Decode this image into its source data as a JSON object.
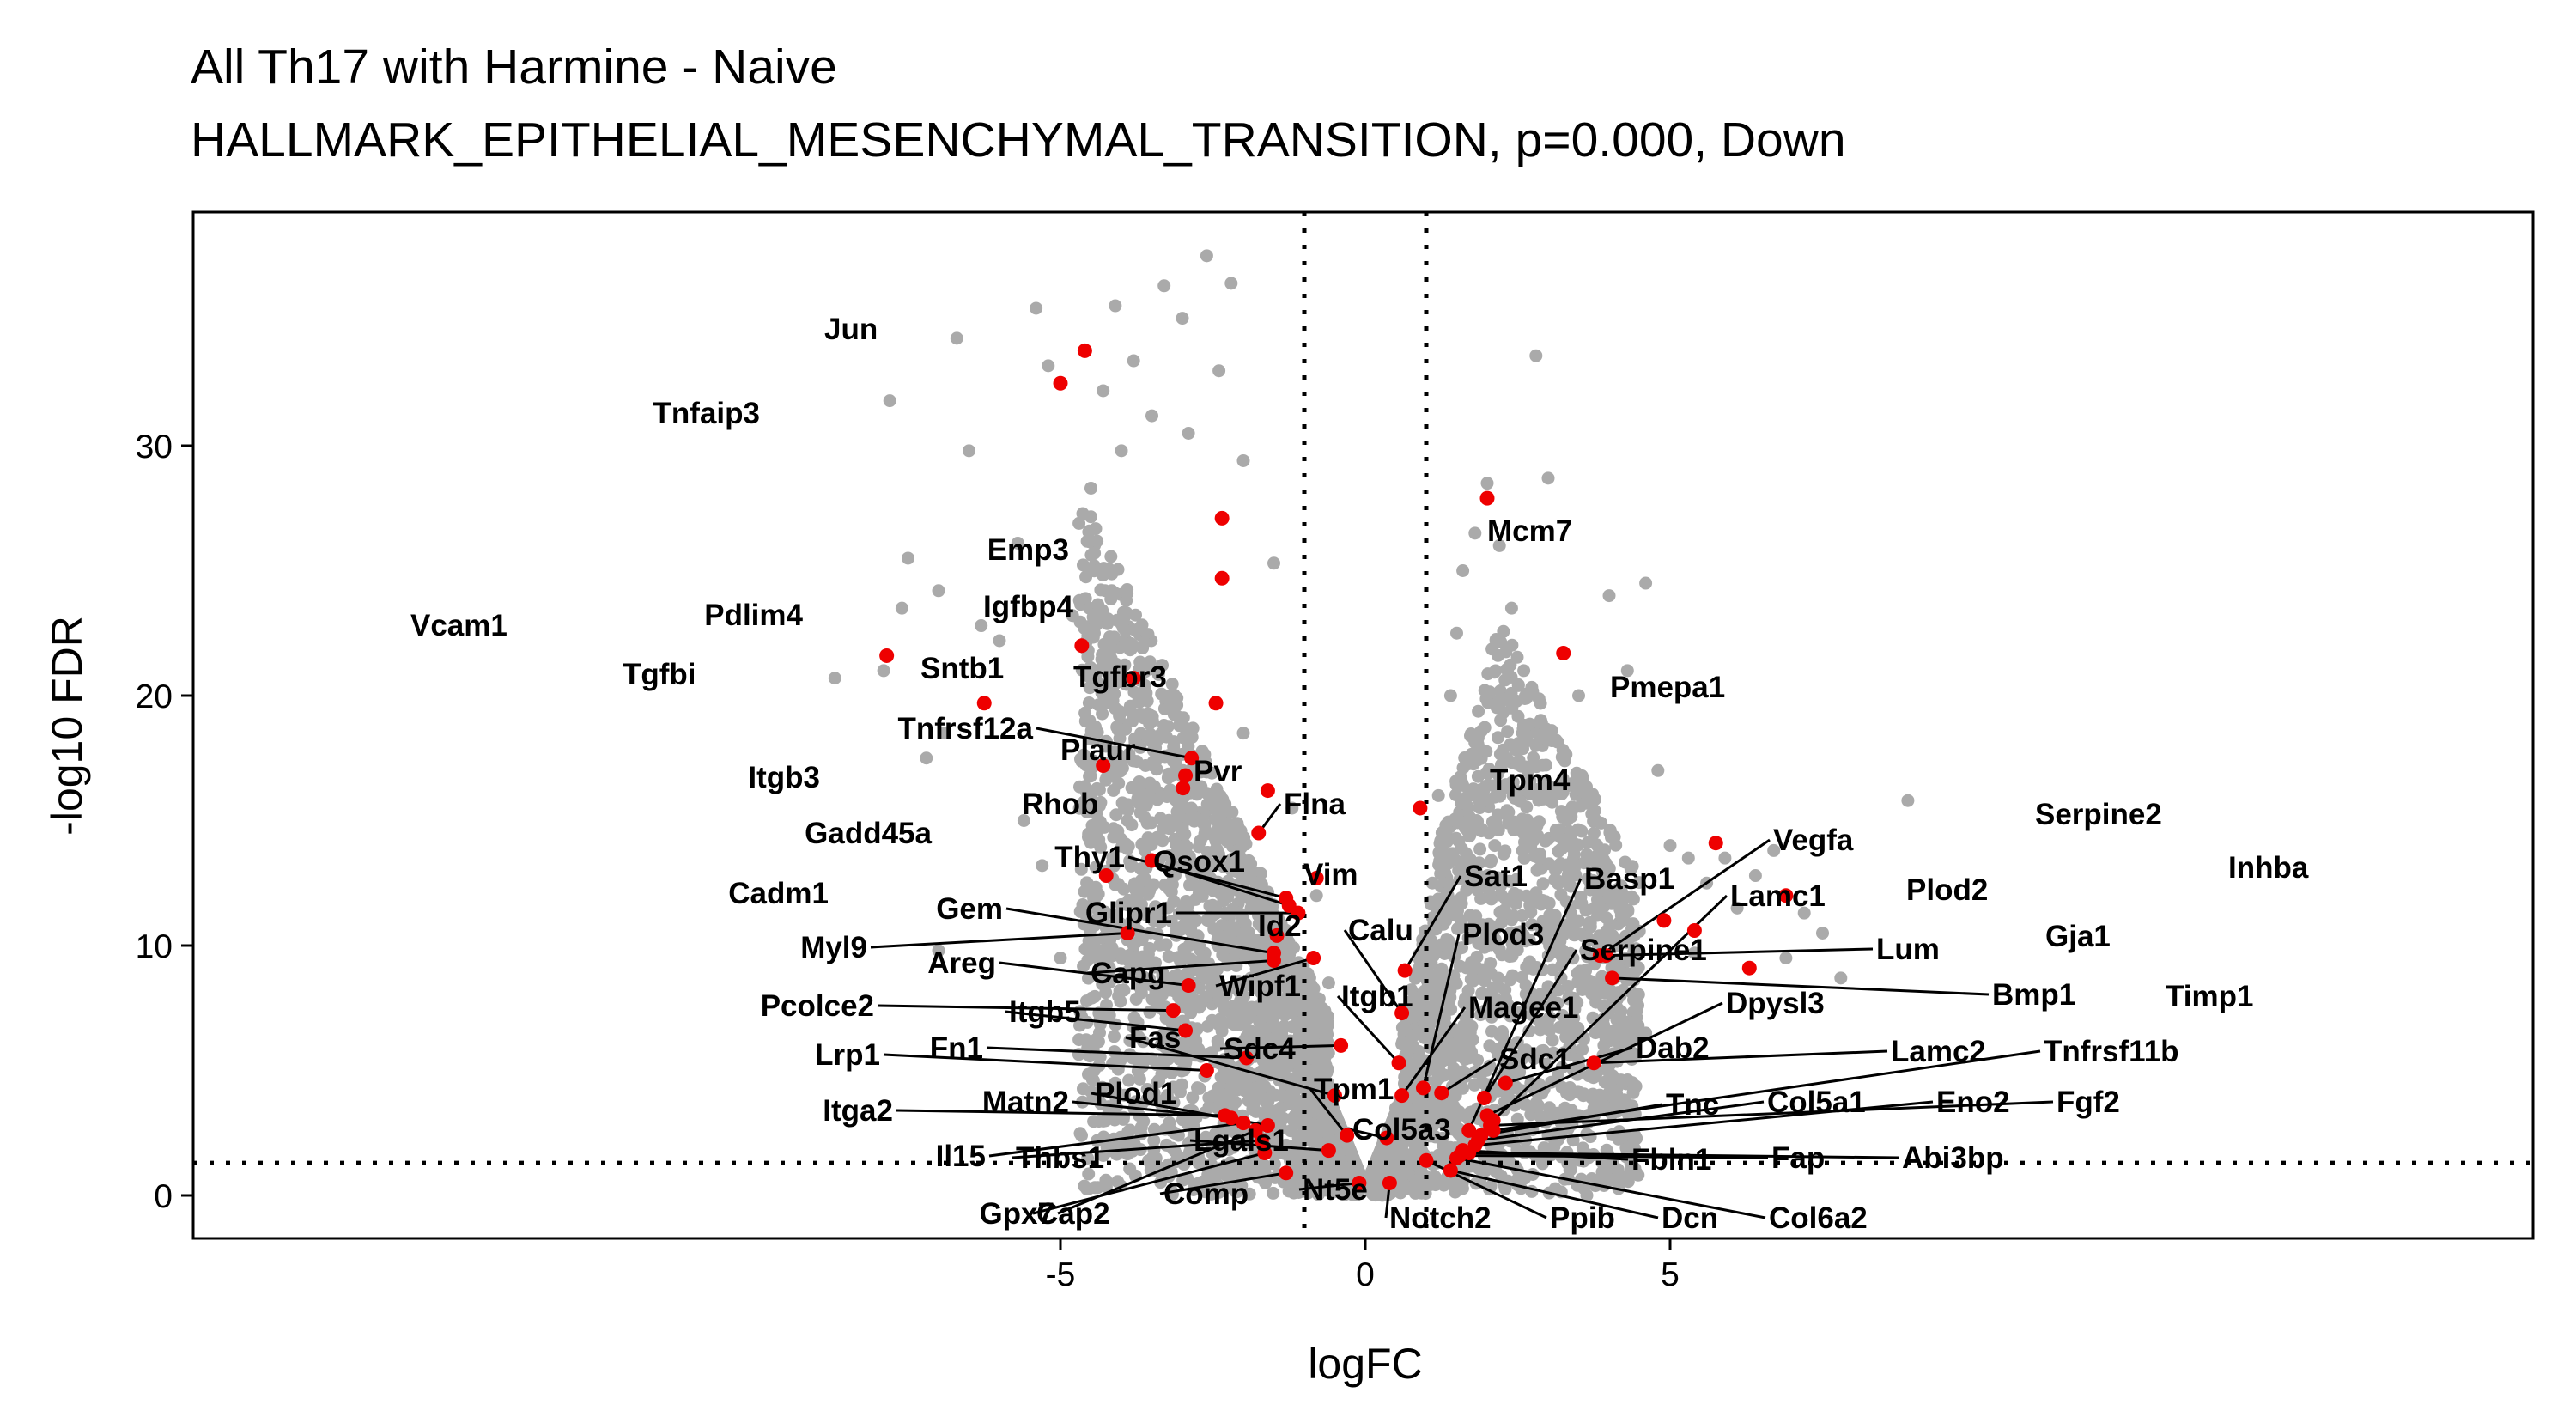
{
  "title": {
    "line1": "All Th17 with Harmine - Naive",
    "line2": "HALLMARK_EPITHELIAL_MESENCHYMAL_TRANSITION, p=0.000, Down"
  },
  "colors": {
    "background_point": "#aaaaaa",
    "highlight_point": "#ee0000",
    "threshold_line": "#000000",
    "panel_border": "#000000"
  },
  "chart_data": {
    "type": "scatter",
    "xlabel": "logFC",
    "ylabel": "-log10 FDR",
    "xlim": [
      -9.5,
      9.5
    ],
    "ylim": [
      -1.8,
      39
    ],
    "x_ticks": [
      -5,
      0,
      5
    ],
    "x_tick_labels": [
      "-5",
      "0",
      "5"
    ],
    "y_ticks": [
      0,
      10,
      20,
      30
    ],
    "y_tick_labels": [
      "0",
      "10",
      "20",
      "30"
    ],
    "grid": false,
    "legend": "none",
    "thresholds": {
      "logfc": [
        -1,
        1
      ],
      "neg_log10_fdr": 1.3
    },
    "background_points": [
      [
        -8.7,
        20.7
      ],
      [
        -7.9,
        21.0
      ],
      [
        -7.8,
        31.8
      ],
      [
        -7.6,
        23.5
      ],
      [
        -7.5,
        25.5
      ],
      [
        -7.2,
        17.5
      ],
      [
        -7.0,
        9.8
      ],
      [
        -7.0,
        24.2
      ],
      [
        -6.9,
        18.5
      ],
      [
        -6.7,
        34.3
      ],
      [
        -6.5,
        29.8
      ],
      [
        -6.3,
        22.8
      ],
      [
        -6.0,
        22.2
      ],
      [
        -5.7,
        26.1
      ],
      [
        -5.6,
        15.0
      ],
      [
        -5.4,
        35.5
      ],
      [
        -5.3,
        13.2
      ],
      [
        -5.2,
        33.2
      ],
      [
        -5.0,
        9.5
      ],
      [
        -4.8,
        23.2
      ],
      [
        -4.6,
        17.5
      ],
      [
        -4.5,
        28.3
      ],
      [
        -4.3,
        32.2
      ],
      [
        -4.1,
        35.6
      ],
      [
        -4.0,
        29.8
      ],
      [
        -3.8,
        33.4
      ],
      [
        -3.6,
        21.0
      ],
      [
        -3.5,
        31.2
      ],
      [
        -3.3,
        36.4
      ],
      [
        -3.0,
        35.1
      ],
      [
        -2.9,
        30.5
      ],
      [
        -2.6,
        37.6
      ],
      [
        -2.4,
        33.0
      ],
      [
        -2.2,
        36.5
      ],
      [
        -2.0,
        29.4
      ],
      [
        -1.5,
        25.3
      ],
      [
        -3.9,
        15.0
      ],
      [
        -4.4,
        12.0
      ],
      [
        -3.1,
        10.4
      ],
      [
        -2.7,
        14.2
      ],
      [
        -2.0,
        18.5
      ],
      [
        -1.8,
        12.5
      ],
      [
        -1.4,
        9.0
      ],
      [
        -1.2,
        15.5
      ],
      [
        -2.3,
        8.0
      ],
      [
        -3.2,
        6.5
      ],
      [
        -1.0,
        5.5
      ],
      [
        -0.8,
        12.0
      ],
      [
        -0.6,
        8.5
      ],
      [
        -0.5,
        4.0
      ],
      [
        -0.3,
        2.5
      ],
      [
        -0.2,
        1.2
      ],
      [
        -0.1,
        0.4
      ],
      [
        0.1,
        0.3
      ],
      [
        0.2,
        1.0
      ],
      [
        0.3,
        2.2
      ],
      [
        0.5,
        3.5
      ],
      [
        0.7,
        6.0
      ],
      [
        0.9,
        9.0
      ],
      [
        1.1,
        12.5
      ],
      [
        1.2,
        16.0
      ],
      [
        1.4,
        20.0
      ],
      [
        1.5,
        22.5
      ],
      [
        1.6,
        25.0
      ],
      [
        1.8,
        26.5
      ],
      [
        2.0,
        28.5
      ],
      [
        2.2,
        26.0
      ],
      [
        2.4,
        23.5
      ],
      [
        2.6,
        21.0
      ],
      [
        2.8,
        18.0
      ],
      [
        3.0,
        28.7
      ],
      [
        2.8,
        33.6
      ],
      [
        3.5,
        20.0
      ],
      [
        3.7,
        16.0
      ],
      [
        4.0,
        24.0
      ],
      [
        4.3,
        21.0
      ],
      [
        4.6,
        24.5
      ],
      [
        4.8,
        17.0
      ],
      [
        5.0,
        14.0
      ],
      [
        5.3,
        13.5
      ],
      [
        5.6,
        12.5
      ],
      [
        5.9,
        13.5
      ],
      [
        6.1,
        11.5
      ],
      [
        6.4,
        12.8
      ],
      [
        6.7,
        13.8
      ],
      [
        6.9,
        9.5
      ],
      [
        7.2,
        11.3
      ],
      [
        7.5,
        10.5
      ],
      [
        7.8,
        8.7
      ],
      [
        8.9,
        15.8
      ],
      [
        5.4,
        9.7
      ],
      [
        4.6,
        6.5
      ],
      [
        4.1,
        4.0
      ],
      [
        3.5,
        3.2
      ],
      [
        3.0,
        2.4
      ],
      [
        2.5,
        1.8
      ],
      [
        -1.5,
        2.0
      ],
      [
        -0.9,
        1.6
      ],
      [
        -2.6,
        2.3
      ],
      [
        -2.2,
        4.2
      ]
    ],
    "highlighted_genes": [
      {
        "gene": "Vcam1",
        "x": -7.85,
        "y": 21.6
      },
      {
        "gene": "Tgfbi",
        "x": -6.25,
        "y": 19.7
      },
      {
        "gene": "Pdlim4",
        "x": -4.65,
        "y": 22.0
      },
      {
        "gene": "Jun",
        "x": -4.6,
        "y": 33.8
      },
      {
        "gene": "Tnfaip3",
        "x": -5.0,
        "y": 32.5
      },
      {
        "gene": "Emp3",
        "x": -2.35,
        "y": 27.1
      },
      {
        "gene": "Igfbp4",
        "x": -2.35,
        "y": 24.7
      },
      {
        "gene": "Sntb1",
        "x": -3.8,
        "y": 20.7
      },
      {
        "gene": "Tgfbr3",
        "x": -2.45,
        "y": 19.7
      },
      {
        "gene": "Tnfrsf12a",
        "x": -2.85,
        "y": 17.5
      },
      {
        "gene": "Plaur",
        "x": -2.95,
        "y": 16.8
      },
      {
        "gene": "Rhob",
        "x": -2.99,
        "y": 16.3
      },
      {
        "gene": "Itgb3",
        "x": -4.3,
        "y": 17.2
      },
      {
        "gene": "Gadd45a",
        "x": -3.5,
        "y": 13.4
      },
      {
        "gene": "Cadm1",
        "x": -4.25,
        "y": 12.8
      },
      {
        "gene": "Pvr",
        "x": -1.6,
        "y": 16.2
      },
      {
        "gene": "Flna",
        "x": -1.75,
        "y": 14.5
      },
      {
        "gene": "Thy1",
        "x": -1.3,
        "y": 11.9
      },
      {
        "gene": "Qsox1",
        "x": -1.25,
        "y": 11.6
      },
      {
        "gene": "Vim",
        "x": -0.8,
        "y": 12.7
      },
      {
        "gene": "Glipr1",
        "x": -1.1,
        "y": 11.3
      },
      {
        "gene": "Gem",
        "x": -1.5,
        "y": 9.7
      },
      {
        "gene": "Id2",
        "x": -1.45,
        "y": 10.4
      },
      {
        "gene": "Myl9",
        "x": -3.9,
        "y": 10.5
      },
      {
        "gene": "Areg",
        "x": -2.9,
        "y": 8.4
      },
      {
        "gene": "Wipf1",
        "x": -0.85,
        "y": 9.5
      },
      {
        "gene": "Pcolce2",
        "x": -3.15,
        "y": 7.4
      },
      {
        "gene": "Itgb5",
        "x": -2.95,
        "y": 6.6
      },
      {
        "gene": "Capg",
        "x": -1.5,
        "y": 9.4
      },
      {
        "gene": "Lrp1",
        "x": -2.6,
        "y": 5.0
      },
      {
        "gene": "Fn1",
        "x": -1.95,
        "y": 5.5
      },
      {
        "gene": "Fas",
        "x": -0.5,
        "y": 4.0
      },
      {
        "gene": "Sdc4",
        "x": -0.4,
        "y": 6.0
      },
      {
        "gene": "Itga2",
        "x": -2.3,
        "y": 3.2
      },
      {
        "gene": "Matn2",
        "x": -2.2,
        "y": 3.1
      },
      {
        "gene": "Plod1",
        "x": -1.6,
        "y": 2.8
      },
      {
        "gene": "Tpm1",
        "x": -0.3,
        "y": 2.4
      },
      {
        "gene": "Il15",
        "x": -2.0,
        "y": 2.9
      },
      {
        "gene": "Thbs1",
        "x": -1.7,
        "y": 2.2
      },
      {
        "gene": "Lgals1",
        "x": -0.6,
        "y": 1.8
      },
      {
        "gene": "Gpx7",
        "x": -1.8,
        "y": 2.6
      },
      {
        "gene": "Cap2",
        "x": -1.65,
        "y": 1.7
      },
      {
        "gene": "Comp",
        "x": -1.3,
        "y": 0.9
      },
      {
        "gene": "Nt5e",
        "x": -0.1,
        "y": 0.5
      },
      {
        "gene": "Mcm7",
        "x": 2.0,
        "y": 27.9
      },
      {
        "gene": "Pmepa1",
        "x": 3.25,
        "y": 21.7
      },
      {
        "gene": "Tpm4",
        "x": 0.9,
        "y": 15.5
      },
      {
        "gene": "Sat1",
        "x": 0.65,
        "y": 9.0
      },
      {
        "gene": "Calu",
        "x": 0.6,
        "y": 7.3
      },
      {
        "gene": "Plod3",
        "x": 0.95,
        "y": 4.3
      },
      {
        "gene": "Itgb1",
        "x": 0.55,
        "y": 5.3
      },
      {
        "gene": "Magee1",
        "x": 0.6,
        "y": 4.0
      },
      {
        "gene": "Sdc1",
        "x": 1.25,
        "y": 4.1
      },
      {
        "gene": "Col5a3",
        "x": 0.35,
        "y": 2.3
      },
      {
        "gene": "Notch2",
        "x": 0.4,
        "y": 0.5
      },
      {
        "gene": "Ppib",
        "x": 1.0,
        "y": 1.4
      },
      {
        "gene": "Dcn",
        "x": 1.4,
        "y": 1.0
      },
      {
        "gene": "Col6a2",
        "x": 1.5,
        "y": 1.5
      },
      {
        "gene": "Basp1",
        "x": 1.7,
        "y": 2.6
      },
      {
        "gene": "Serpine1",
        "x": 1.95,
        "y": 3.9
      },
      {
        "gene": "Dpysl3",
        "x": 2.0,
        "y": 3.2
      },
      {
        "gene": "Dab2",
        "x": 2.3,
        "y": 4.5
      },
      {
        "gene": "Lamc1",
        "x": 2.1,
        "y": 3.0
      },
      {
        "gene": "Vegfa",
        "x": 3.85,
        "y": 9.6
      },
      {
        "gene": "Lum",
        "x": 3.95,
        "y": 9.6
      },
      {
        "gene": "Bmp1",
        "x": 4.05,
        "y": 8.7
      },
      {
        "gene": "Plod2",
        "x": 4.9,
        "y": 11.0
      },
      {
        "gene": "Gja1",
        "x": 5.4,
        "y": 10.6
      },
      {
        "gene": "Serpine2",
        "x": 5.75,
        "y": 14.1
      },
      {
        "gene": "Inhba",
        "x": 6.9,
        "y": 12.0
      },
      {
        "gene": "Timp1",
        "x": 6.3,
        "y": 9.1
      },
      {
        "gene": "Lamc2",
        "x": 3.75,
        "y": 5.3
      },
      {
        "gene": "Tnfrsf11b",
        "x": 2.1,
        "y": 2.6
      },
      {
        "gene": "Tnc",
        "x": 1.9,
        "y": 2.4
      },
      {
        "gene": "Col5a1",
        "x": 1.85,
        "y": 2.2
      },
      {
        "gene": "Eno2",
        "x": 1.8,
        "y": 2.0
      },
      {
        "gene": "Fgf2",
        "x": 2.05,
        "y": 2.8
      },
      {
        "gene": "Fbln1",
        "x": 1.6,
        "y": 1.8
      },
      {
        "gene": "Fap",
        "x": 1.55,
        "y": 1.6
      },
      {
        "gene": "Abi3bp",
        "x": 1.7,
        "y": 1.7
      }
    ]
  }
}
